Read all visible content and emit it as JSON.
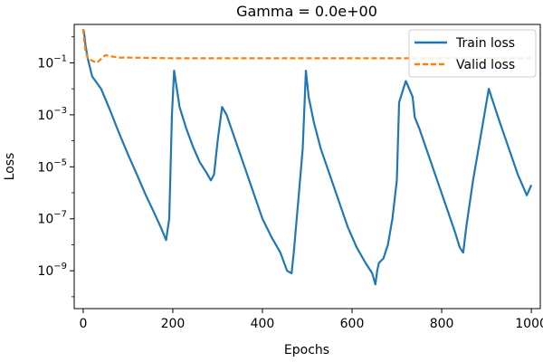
{
  "chart_data": {
    "type": "line",
    "title": "Gamma = 0.0e+00",
    "xlabel": "Epochs",
    "ylabel": "Loss",
    "xlim": [
      -20,
      1020
    ],
    "ylim": [
      3.5e-11,
      3.0
    ],
    "y_scale": "log",
    "grid": false,
    "legend_position": "top-right",
    "x_ticks": [
      0,
      200,
      400,
      600,
      800,
      1000
    ],
    "x_tick_labels": [
      "0",
      "200",
      "400",
      "600",
      "800",
      "1000"
    ],
    "y_ticks": [
      1e-09,
      1e-07,
      1e-05,
      0.001,
      0.1
    ],
    "y_tick_labels": [
      {
        "base": "10",
        "exp": "−9"
      },
      {
        "base": "10",
        "exp": "−7"
      },
      {
        "base": "10",
        "exp": "−5"
      },
      {
        "base": "10",
        "exp": "−3"
      },
      {
        "base": "10",
        "exp": "−1"
      }
    ],
    "series": [
      {
        "name": "Train loss",
        "color": "#1f77b4",
        "dash": "solid",
        "x": [
          0,
          2,
          5,
          10,
          20,
          40,
          60,
          80,
          100,
          120,
          140,
          160,
          175,
          185,
          192,
          198,
          203,
          215,
          230,
          245,
          260,
          275,
          285,
          292,
          300,
          310,
          320,
          340,
          360,
          380,
          400,
          420,
          440,
          455,
          465,
          470,
          480,
          490,
          497,
          503,
          515,
          530,
          550,
          570,
          590,
          610,
          630,
          645,
          652,
          656,
          660,
          670,
          680,
          690,
          700,
          705,
          720,
          735,
          740,
          750,
          770,
          790,
          810,
          830,
          840,
          848,
          855,
          870,
          890,
          905,
          915,
          930,
          950,
          970,
          990,
          1000
        ],
        "y": [
          2.0,
          1.5,
          0.5,
          0.15,
          0.03,
          0.01,
          0.0015,
          0.0002,
          3e-05,
          5e-06,
          8e-07,
          1.5e-07,
          4e-08,
          1.5e-08,
          1e-07,
          0.001,
          0.05,
          0.002,
          0.0003,
          6e-05,
          1.5e-05,
          6e-06,
          3e-06,
          5e-06,
          0.0001,
          0.002,
          0.001,
          0.0001,
          1e-05,
          1e-06,
          1e-07,
          2e-08,
          5e-09,
          1e-09,
          8e-10,
          5e-09,
          5e-07,
          5e-05,
          0.05,
          0.005,
          0.0005,
          5e-05,
          5e-06,
          5e-07,
          5e-08,
          8e-09,
          2e-09,
          8e-10,
          3e-10,
          1e-09,
          2e-09,
          3e-09,
          1e-08,
          1e-07,
          3e-06,
          0.003,
          0.02,
          0.005,
          0.0008,
          0.0003,
          3e-05,
          3e-06,
          3e-07,
          3e-08,
          8e-09,
          5e-09,
          5e-08,
          3e-06,
          0.0003,
          0.01,
          0.003,
          0.0005,
          5e-05,
          5e-06,
          8e-07,
          2e-06
        ]
      },
      {
        "name": "Valid loss",
        "color": "#ff7f0e",
        "dash": "dashed",
        "x": [
          0,
          2,
          5,
          10,
          20,
          30,
          40,
          50,
          60,
          80,
          100,
          200,
          300,
          400,
          500,
          600,
          700,
          800,
          900,
          1000
        ],
        "y": [
          2.0,
          0.8,
          0.3,
          0.15,
          0.12,
          0.1,
          0.14,
          0.2,
          0.18,
          0.16,
          0.16,
          0.15,
          0.15,
          0.15,
          0.15,
          0.15,
          0.15,
          0.15,
          0.15,
          0.15
        ]
      }
    ]
  }
}
